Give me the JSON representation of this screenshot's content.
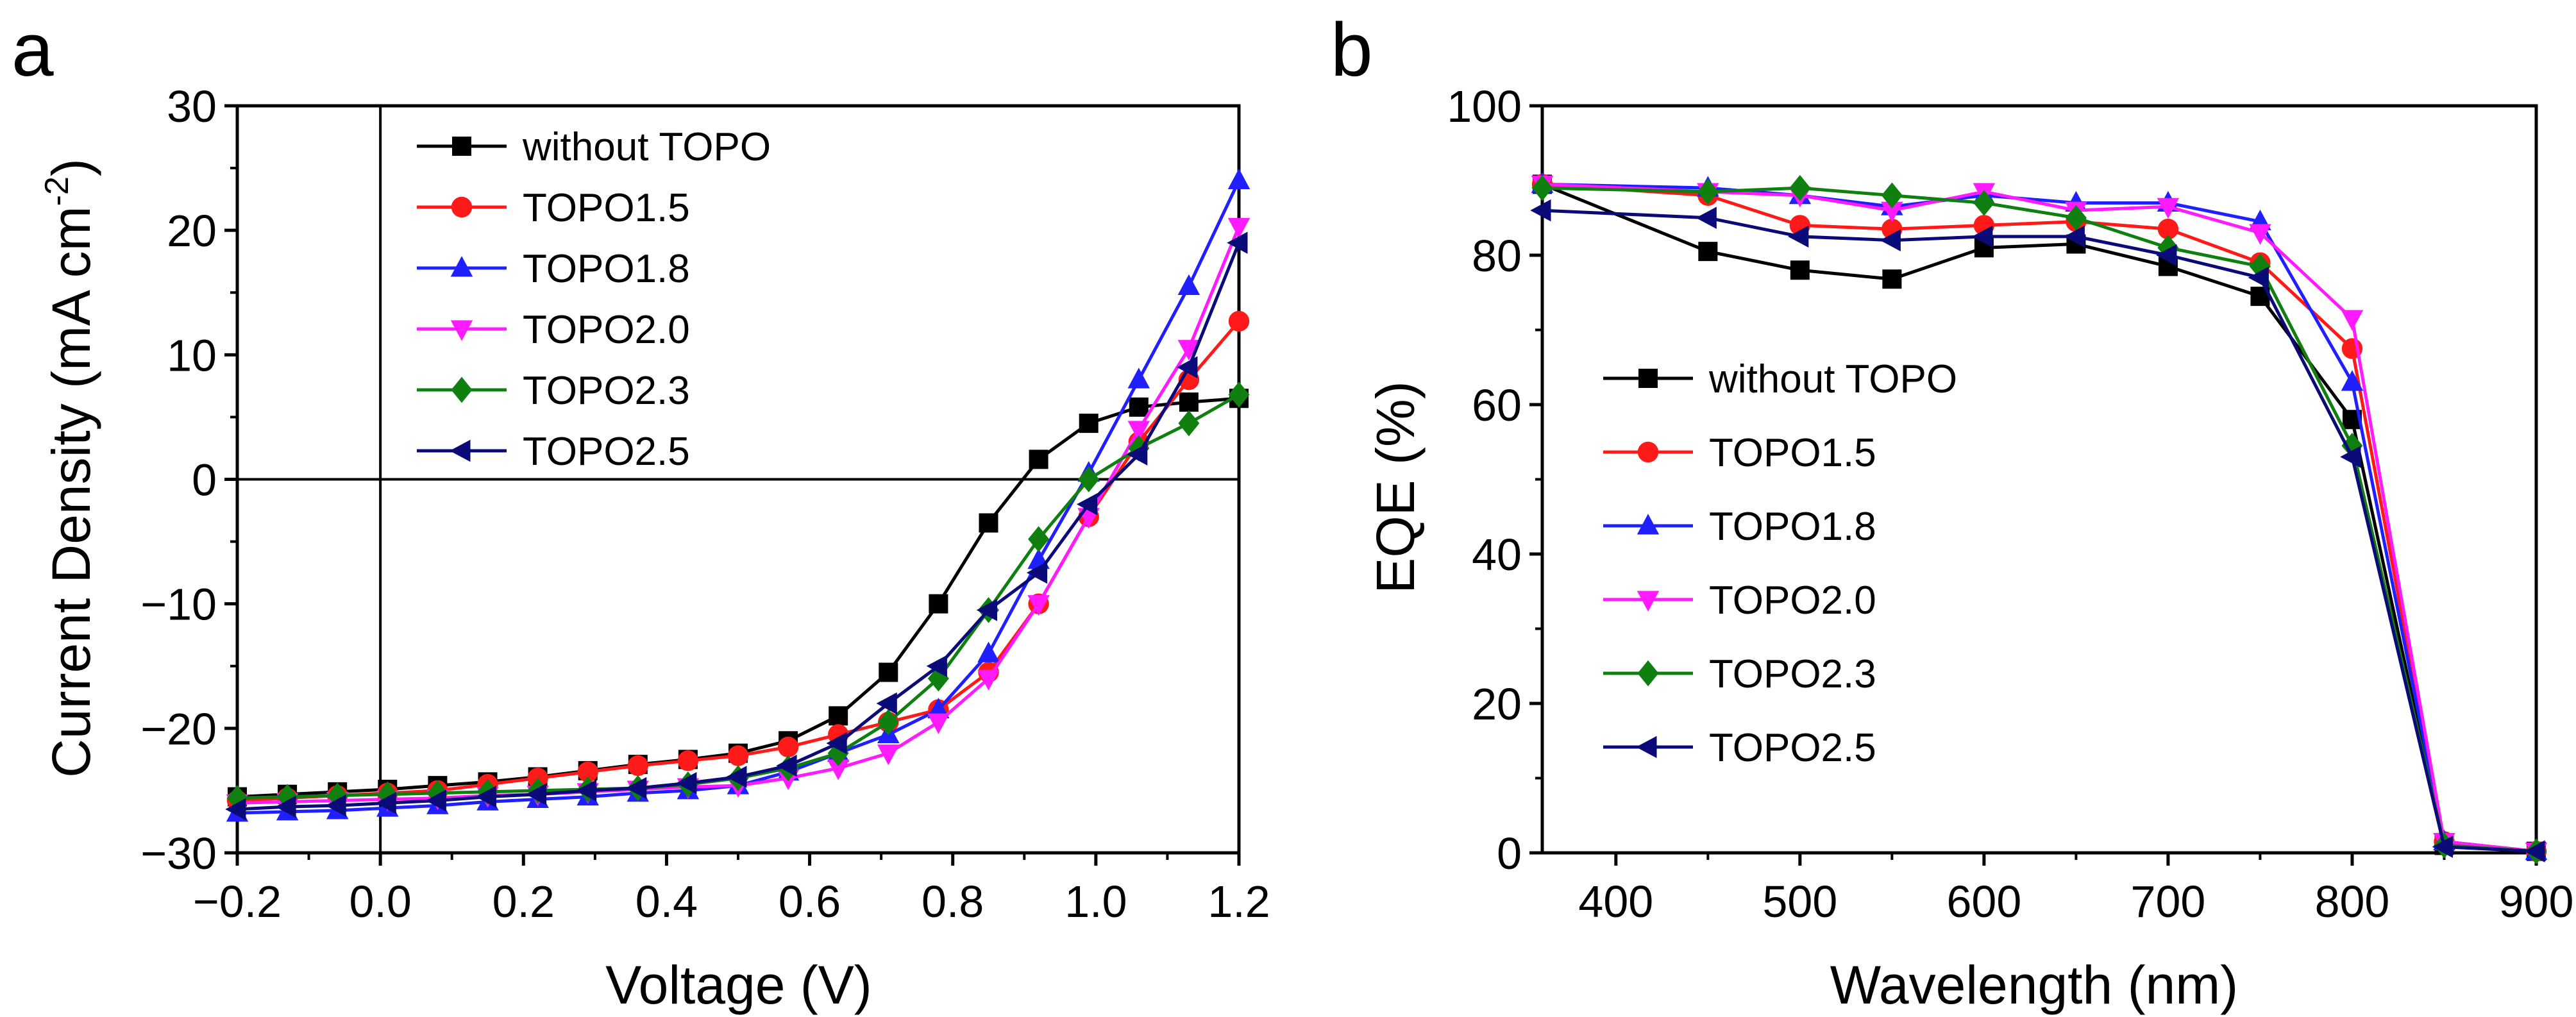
{
  "colors": {
    "without TOPO": "#000000",
    "TOPO1.5": "#ff1a1a",
    "TOPO1.8": "#1f1fff",
    "TOPO2.0": "#ff1aff",
    "TOPO2.3": "#0f7f0f",
    "TOPO2.5": "#0a0a78"
  },
  "markers": {
    "without TOPO": "square",
    "TOPO1.5": "circle",
    "TOPO1.8": "triangle-up",
    "TOPO2.0": "triangle-down",
    "TOPO2.3": "diamond",
    "TOPO2.5": "triangle-left"
  },
  "chart_data": [
    {
      "panel_label": "a",
      "type": "line",
      "xlabel": "Voltage (V)",
      "ylabel_main": "Current Density (mA cm",
      "ylabel_sup": "-2",
      "ylabel_close": ")",
      "xlim": [
        -0.2,
        1.2
      ],
      "ylim": [
        -30,
        30
      ],
      "xticks": [
        -0.2,
        0.0,
        0.2,
        0.4,
        0.6,
        0.8,
        1.0,
        1.2
      ],
      "xtick_labels": [
        "−0.2",
        "0.0",
        "0.2",
        "0.4",
        "0.6",
        "0.8",
        "1.0",
        "1.2"
      ],
      "yticks": [
        -30,
        -20,
        -10,
        0,
        10,
        20,
        30
      ],
      "ytick_labels": [
        "−30",
        "−20",
        "−10",
        "0",
        "10",
        "20",
        "30"
      ],
      "zero_lines": true,
      "legend_position": "top-left",
      "x": [
        -0.2,
        -0.13,
        -0.06,
        0.01,
        0.08,
        0.15,
        0.22,
        0.29,
        0.36,
        0.43,
        0.5,
        0.57,
        0.64,
        0.71,
        0.78,
        0.85,
        0.92,
        0.99,
        1.06,
        1.13,
        1.2
      ],
      "series": [
        {
          "name": "without TOPO",
          "values": [
            -25.5,
            -25.3,
            -25.1,
            -24.9,
            -24.6,
            -24.3,
            -23.9,
            -23.4,
            -22.9,
            -22.5,
            -22.0,
            -21.0,
            -19.0,
            -15.5,
            -10.0,
            -3.5,
            1.6,
            4.5,
            5.8,
            6.2,
            6.5
          ]
        },
        {
          "name": "TOPO1.5",
          "values": [
            -25.8,
            -25.6,
            -25.4,
            -25.2,
            -25.0,
            -24.5,
            -24.0,
            -23.5,
            -23.0,
            -22.6,
            -22.2,
            -21.5,
            -20.5,
            -19.5,
            -18.5,
            -15.5,
            -10.0,
            -3.0,
            3.0,
            8.0,
            12.7
          ]
        },
        {
          "name": "TOPO1.8",
          "values": [
            -26.8,
            -26.7,
            -26.6,
            -26.4,
            -26.2,
            -25.9,
            -25.7,
            -25.5,
            -25.2,
            -25.0,
            -24.6,
            -23.5,
            -22.0,
            -20.5,
            -18.5,
            -14.0,
            -6.5,
            0.5,
            8.0,
            15.5,
            24.0
          ]
        },
        {
          "name": "TOPO2.0",
          "values": [
            -26.0,
            -25.9,
            -25.8,
            -25.7,
            -25.6,
            -25.4,
            -25.3,
            -25.1,
            -24.9,
            -24.7,
            -24.6,
            -24.0,
            -23.2,
            -22.0,
            -19.5,
            -16.0,
            -10.0,
            -3.0,
            4.0,
            10.5,
            20.3
          ]
        },
        {
          "name": "TOPO2.3",
          "values": [
            -25.6,
            -25.5,
            -25.4,
            -25.3,
            -25.2,
            -25.1,
            -25.0,
            -24.9,
            -24.8,
            -24.5,
            -24.0,
            -23.2,
            -22.0,
            -19.5,
            -16.0,
            -10.5,
            -4.8,
            0.0,
            2.5,
            4.5,
            6.8
          ]
        },
        {
          "name": "TOPO2.5",
          "values": [
            -26.5,
            -26.3,
            -26.2,
            -26.0,
            -25.8,
            -25.5,
            -25.3,
            -25.0,
            -24.8,
            -24.4,
            -23.9,
            -23.0,
            -21.2,
            -18.0,
            -15.0,
            -10.5,
            -7.5,
            -2.0,
            2.0,
            9.0,
            19.0
          ]
        }
      ]
    },
    {
      "panel_label": "b",
      "type": "line",
      "xlabel": "Wavelength (nm)",
      "ylabel": "EQE (%)",
      "xlim": [
        360,
        900
      ],
      "ylim": [
        0,
        100
      ],
      "xticks": [
        400,
        500,
        600,
        700,
        800,
        900
      ],
      "xtick_labels": [
        "400",
        "500",
        "600",
        "700",
        "800",
        "900"
      ],
      "yticks": [
        0,
        20,
        40,
        60,
        80,
        100
      ],
      "ytick_labels": [
        "0",
        "20",
        "40",
        "60",
        "80",
        "100"
      ],
      "legend_position": "center-left",
      "x": [
        360,
        450,
        500,
        550,
        600,
        650,
        700,
        750,
        800,
        850,
        900
      ],
      "series": [
        {
          "name": "without TOPO",
          "values": [
            89.5,
            80.5,
            78.0,
            76.8,
            81.0,
            81.5,
            78.5,
            74.5,
            58.0,
            1.0,
            0.2
          ]
        },
        {
          "name": "TOPO1.5",
          "values": [
            89.5,
            88.0,
            84.0,
            83.5,
            84.0,
            84.5,
            83.5,
            79.0,
            67.5,
            1.5,
            0.2
          ]
        },
        {
          "name": "TOPO1.8",
          "values": [
            89.5,
            89.0,
            88.0,
            86.5,
            88.0,
            87.0,
            87.0,
            84.5,
            63.0,
            1.5,
            0.2
          ]
        },
        {
          "name": "TOPO2.0",
          "values": [
            89.5,
            88.5,
            88.0,
            86.0,
            88.5,
            86.0,
            86.5,
            83.0,
            71.5,
            1.5,
            0.2
          ]
        },
        {
          "name": "TOPO2.3",
          "values": [
            89.0,
            88.5,
            89.0,
            88.0,
            87.0,
            85.0,
            81.0,
            78.5,
            54.5,
            1.0,
            0.2
          ]
        },
        {
          "name": "TOPO2.5",
          "values": [
            86.0,
            85.0,
            82.5,
            82.0,
            82.5,
            82.5,
            80.0,
            77.0,
            53.0,
            0.8,
            0.2
          ]
        }
      ]
    }
  ]
}
